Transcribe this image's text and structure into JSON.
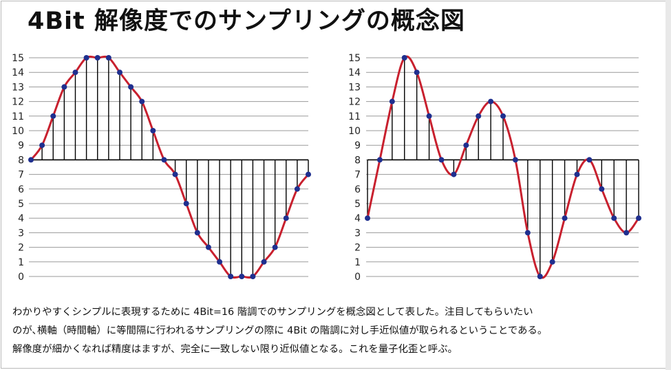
{
  "title": "4Bit 解像度でのサンプリングの概念図",
  "caption": [
    "わかりやすくシンプルに表現するために 4Bit=16 階調でのサンプリングを概念図として表した。注目してもらいたい",
    "のが､横軸（時間軸）に等間隔に行われるサンプリングの際に 4Bit の階調に対し手近似値が取られるということである。",
    "解像度が細かくなれば精度はますが、完全に一致しない限り近似値となる。これを量子化歪と呼ぶ。"
  ],
  "colors": {
    "curve": "#c8202e",
    "point": "#1f2f8f",
    "grid": "#9a9a9a",
    "stem": "#000000"
  },
  "chart_data": [
    {
      "type": "line",
      "ylim": [
        0,
        15
      ],
      "yticks": [
        "0",
        "1",
        "2",
        "3",
        "4",
        "5",
        "6",
        "7",
        "8",
        "9",
        "10",
        "11",
        "12",
        "13",
        "14",
        "15"
      ],
      "baseline": 8,
      "grid": true,
      "series": [
        {
          "values": [
            8,
            9,
            11,
            13,
            14,
            15,
            15,
            15,
            14,
            13,
            12,
            10,
            8,
            7,
            5,
            3,
            2,
            1,
            0,
            0,
            0,
            1,
            2,
            4,
            6,
            7
          ]
        }
      ]
    },
    {
      "type": "line",
      "ylim": [
        0,
        15
      ],
      "yticks": [
        "0",
        "1",
        "2",
        "3",
        "4",
        "5",
        "6",
        "7",
        "8",
        "9",
        "10",
        "11",
        "12",
        "13",
        "14",
        "15"
      ],
      "baseline": 8,
      "grid": true,
      "series": [
        {
          "values": [
            4,
            8,
            12,
            15,
            14,
            11,
            8,
            7,
            9,
            11,
            12,
            11,
            8,
            3,
            0,
            1,
            4,
            7,
            8,
            6,
            4,
            3,
            4
          ]
        }
      ]
    }
  ]
}
